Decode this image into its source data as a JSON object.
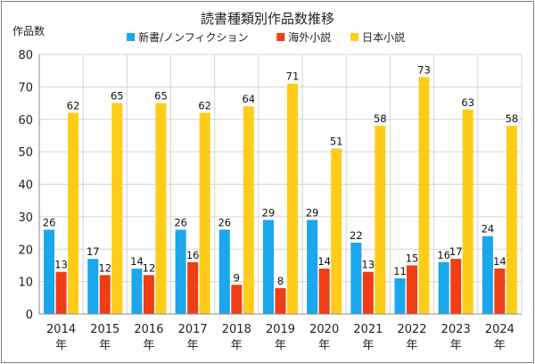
{
  "chart_data": {
    "type": "bar",
    "title": "読書種類別作品数推移",
    "ylabel": "作品数",
    "xlabel": "",
    "ylim": [
      0,
      80
    ],
    "yticks": [
      0,
      10,
      20,
      30,
      40,
      50,
      60,
      70,
      80
    ],
    "grid": true,
    "legend_position": "top",
    "year_suffix": "年",
    "categories": [
      "2014",
      "2015",
      "2016",
      "2017",
      "2018",
      "2019",
      "2020",
      "2021",
      "2022",
      "2023",
      "2024"
    ],
    "series": [
      {
        "name": "新書/ノンフィクション",
        "color": "#1aa7ec",
        "values": [
          26,
          17,
          14,
          26,
          26,
          29,
          29,
          22,
          11,
          16,
          24
        ]
      },
      {
        "name": "海外小説",
        "color": "#ef3e16",
        "values": [
          13,
          12,
          12,
          16,
          9,
          8,
          14,
          13,
          15,
          17,
          14
        ]
      },
      {
        "name": "日本小説",
        "color": "#ffcc1a",
        "values": [
          62,
          65,
          65,
          62,
          64,
          71,
          51,
          58,
          73,
          63,
          58
        ]
      }
    ]
  }
}
